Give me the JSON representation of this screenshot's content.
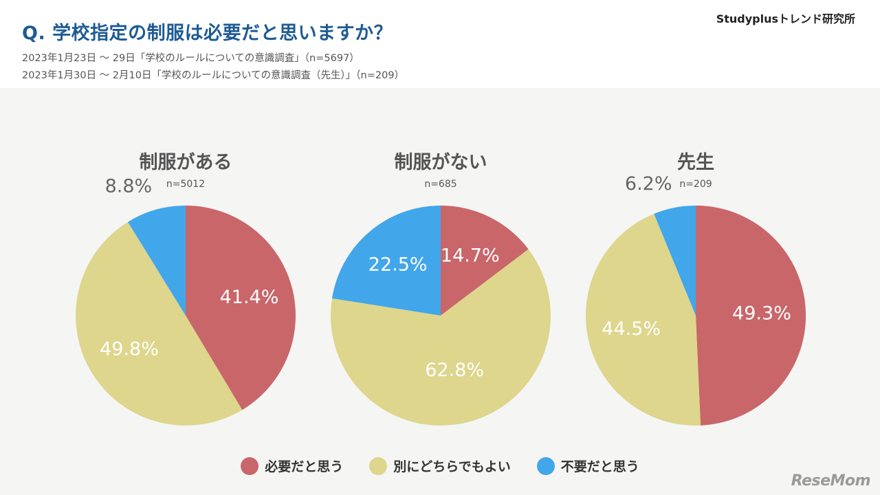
{
  "header": {
    "question": "Q. 学校指定の制服は必要だと思いますか？",
    "brand": "Studyplusトレンド研究所",
    "survey_1": "2023年1月23日 〜 29日「学校のルールについての意識調査」（n=5697）",
    "survey_2": "2023年1月30日 〜 2月10日「学校のルールについての意識調査（先生）」（n=209）"
  },
  "colors": {
    "necessary": "#c9666a",
    "either": "#ddd68c",
    "unnecessary": "#42a6ea"
  },
  "legend": [
    {
      "key": "necessary",
      "label": "必要だと思う"
    },
    {
      "key": "either",
      "label": "別にどちらでもよい"
    },
    {
      "key": "unnecessary",
      "label": "不要だと思う"
    }
  ],
  "chart_data": [
    {
      "type": "pie",
      "title": "制服がある",
      "n_label": "n=5012",
      "slices": [
        {
          "key": "necessary",
          "label": "必要だと思う",
          "value": 41.4,
          "display": "41.4%"
        },
        {
          "key": "either",
          "label": "別にどちらでもよい",
          "value": 49.8,
          "display": "49.8%"
        },
        {
          "key": "unnecessary",
          "label": "不要だと思う",
          "value": 8.8,
          "display": "8.8%"
        }
      ]
    },
    {
      "type": "pie",
      "title": "制服がない",
      "n_label": "n=685",
      "slices": [
        {
          "key": "necessary",
          "label": "必要だと思う",
          "value": 14.7,
          "display": "14.7%"
        },
        {
          "key": "either",
          "label": "別にどちらでもよい",
          "value": 62.8,
          "display": "62.8%"
        },
        {
          "key": "unnecessary",
          "label": "不要だと思う",
          "value": 22.5,
          "display": "22.5%"
        }
      ]
    },
    {
      "type": "pie",
      "title": "先生",
      "n_label": "n=209",
      "slices": [
        {
          "key": "necessary",
          "label": "必要だと思う",
          "value": 49.3,
          "display": "49.3%"
        },
        {
          "key": "either",
          "label": "別にどちらでもよい",
          "value": 44.5,
          "display": "44.5%"
        },
        {
          "key": "unnecessary",
          "label": "不要だと思う",
          "value": 6.2,
          "display": "6.2%"
        }
      ]
    }
  ],
  "watermark": "ReseMom"
}
